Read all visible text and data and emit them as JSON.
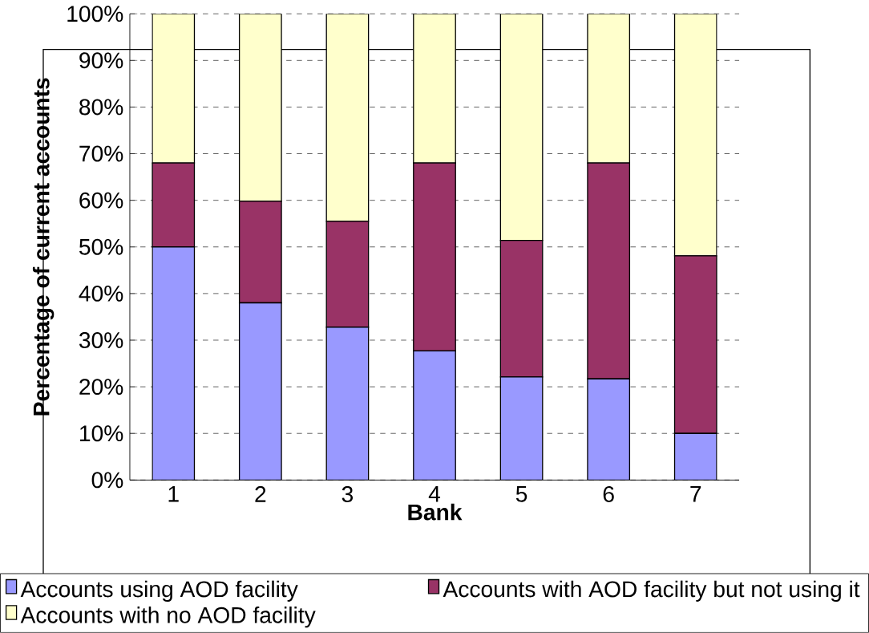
{
  "chart_data": {
    "type": "bar",
    "stacked": true,
    "xlabel": "Bank",
    "ylabel": "Percentage of current accounts",
    "categories": [
      "1",
      "2",
      "3",
      "4",
      "5",
      "6",
      "7"
    ],
    "series": [
      {
        "name": "Accounts using AOD facility",
        "color": "#9999ff",
        "values": [
          50,
          38,
          32.8,
          27.7,
          22.1,
          21.7,
          10
        ]
      },
      {
        "name": "Accounts with AOD facility but not using it",
        "color": "#993366",
        "values": [
          18,
          21.8,
          22.7,
          40.3,
          29.3,
          46.3,
          38.1
        ]
      },
      {
        "name": "Accounts with no AOD facility",
        "color": "#ffffcc",
        "values": [
          32,
          40.2,
          44.5,
          32,
          48.6,
          32,
          51.9
        ]
      }
    ],
    "ylim": [
      0,
      100
    ],
    "yticks": [
      {
        "value": 0,
        "label": "0%"
      },
      {
        "value": 10,
        "label": "10%"
      },
      {
        "value": 20,
        "label": "20%"
      },
      {
        "value": 30,
        "label": "30%"
      },
      {
        "value": 40,
        "label": "40%"
      },
      {
        "value": 50,
        "label": "50%"
      },
      {
        "value": 60,
        "label": "60%"
      },
      {
        "value": 70,
        "label": "70%"
      },
      {
        "value": 80,
        "label": "80%"
      },
      {
        "value": 90,
        "label": "90%"
      },
      {
        "value": 100,
        "label": "100%"
      }
    ],
    "grid": "y",
    "legend": "bottom"
  }
}
